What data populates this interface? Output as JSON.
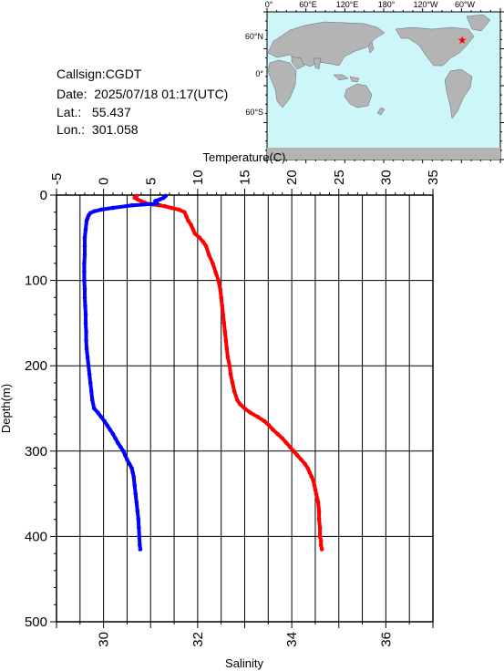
{
  "info": {
    "callsign": "Callsign:CGDT",
    "date_label": "Date:",
    "date_value": "2025/07/18 01:17(UTC)",
    "lat_label": "Lat.:",
    "lat_value": "55.437",
    "lon_label": "Lon.:",
    "lon_value": "301.058"
  },
  "map": {
    "top_labels": [
      "0°",
      "60°E",
      "120°E",
      "180°",
      "120°W",
      "60°W"
    ],
    "left_labels": [
      "60°N",
      "0°",
      "60°S"
    ],
    "ocean_color": "#cdf6fb",
    "land_color": "#b4b4b4",
    "marker_color": "#ff0000",
    "station": {
      "lat": 55.437,
      "lon": 301.058
    }
  },
  "chart_data": {
    "type": "scatter",
    "xlabel_top": "Temperature(C)",
    "xlabel_bottom": "Salinity",
    "ylabel": "Depth(m)",
    "temperature_range": [
      -5,
      35
    ],
    "temperature_ticks": [
      -5,
      0,
      5,
      10,
      15,
      20,
      25,
      30,
      35
    ],
    "salinity_range": [
      29,
      37
    ],
    "salinity_ticks": [
      30,
      32,
      34,
      36
    ],
    "depth_range": [
      0,
      500
    ],
    "depth_ticks": [
      0,
      100,
      200,
      300,
      400,
      500
    ],
    "grid": true,
    "series": [
      {
        "color": "#ff0000",
        "axis": "temperature",
        "points": [
          [
            3.5,
            1
          ],
          [
            3.3,
            3
          ],
          [
            3.6,
            5
          ],
          [
            4.0,
            7
          ],
          [
            4.4,
            9
          ],
          [
            4.6,
            10
          ],
          [
            5.2,
            11
          ],
          [
            6.0,
            12
          ],
          [
            6.5,
            13
          ],
          [
            7.2,
            15
          ],
          [
            8.0,
            17
          ],
          [
            8.6,
            20
          ],
          [
            8.8,
            25
          ],
          [
            9.0,
            30
          ],
          [
            9.3,
            35
          ],
          [
            9.5,
            40
          ],
          [
            9.7,
            45
          ],
          [
            10.2,
            50
          ],
          [
            10.6,
            55
          ],
          [
            10.9,
            60
          ],
          [
            11.2,
            70
          ],
          [
            11.6,
            80
          ],
          [
            11.9,
            90
          ],
          [
            12.2,
            100
          ],
          [
            12.4,
            110
          ],
          [
            12.5,
            120
          ],
          [
            12.6,
            130
          ],
          [
            12.7,
            140
          ],
          [
            12.8,
            150
          ],
          [
            12.9,
            160
          ],
          [
            13.0,
            170
          ],
          [
            13.1,
            180
          ],
          [
            13.2,
            190
          ],
          [
            13.4,
            200
          ],
          [
            13.5,
            210
          ],
          [
            13.7,
            220
          ],
          [
            13.9,
            230
          ],
          [
            14.2,
            240
          ],
          [
            14.5,
            245
          ],
          [
            15.0,
            250
          ],
          [
            15.6,
            255
          ],
          [
            16.4,
            260
          ],
          [
            17.1,
            265
          ],
          [
            17.6,
            270
          ],
          [
            18.0,
            275
          ],
          [
            18.5,
            280
          ],
          [
            19.0,
            285
          ],
          [
            19.4,
            290
          ],
          [
            19.8,
            295
          ],
          [
            20.2,
            300
          ],
          [
            20.6,
            305
          ],
          [
            21.0,
            310
          ],
          [
            21.4,
            315
          ],
          [
            21.7,
            320
          ],
          [
            21.9,
            325
          ],
          [
            22.1,
            330
          ],
          [
            22.3,
            335
          ],
          [
            22.4,
            340
          ],
          [
            22.5,
            345
          ],
          [
            22.6,
            350
          ],
          [
            22.7,
            355
          ],
          [
            22.8,
            360
          ],
          [
            22.9,
            370
          ],
          [
            22.9,
            380
          ],
          [
            23.0,
            390
          ],
          [
            23.0,
            400
          ],
          [
            23.1,
            405
          ],
          [
            23.1,
            410
          ],
          [
            23.2,
            415
          ]
        ]
      },
      {
        "color": "#0000ff",
        "axis": "salinity",
        "points": [
          [
            31.32,
            1
          ],
          [
            31.28,
            3
          ],
          [
            31.2,
            5
          ],
          [
            31.1,
            7
          ],
          [
            31.14,
            10
          ],
          [
            30.6,
            12
          ],
          [
            30.2,
            15
          ],
          [
            29.95,
            17
          ],
          [
            29.8,
            19
          ],
          [
            29.72,
            21
          ],
          [
            29.68,
            24
          ],
          [
            29.66,
            27
          ],
          [
            29.64,
            30
          ],
          [
            29.62,
            40
          ],
          [
            29.6,
            50
          ],
          [
            29.6,
            60
          ],
          [
            29.6,
            70
          ],
          [
            29.59,
            80
          ],
          [
            29.59,
            90
          ],
          [
            29.59,
            100
          ],
          [
            29.6,
            110
          ],
          [
            29.6,
            120
          ],
          [
            29.61,
            130
          ],
          [
            29.62,
            140
          ],
          [
            29.62,
            150
          ],
          [
            29.63,
            160
          ],
          [
            29.63,
            170
          ],
          [
            29.64,
            180
          ],
          [
            29.66,
            190
          ],
          [
            29.68,
            200
          ],
          [
            29.7,
            210
          ],
          [
            29.72,
            220
          ],
          [
            29.74,
            230
          ],
          [
            29.76,
            240
          ],
          [
            29.8,
            250
          ],
          [
            29.88,
            255
          ],
          [
            29.95,
            260
          ],
          [
            30.02,
            265
          ],
          [
            30.08,
            270
          ],
          [
            30.14,
            275
          ],
          [
            30.2,
            280
          ],
          [
            30.25,
            285
          ],
          [
            30.3,
            290
          ],
          [
            30.36,
            295
          ],
          [
            30.42,
            300
          ],
          [
            30.46,
            305
          ],
          [
            30.5,
            310
          ],
          [
            30.55,
            315
          ],
          [
            30.6,
            320
          ],
          [
            30.62,
            325
          ],
          [
            30.64,
            330
          ],
          [
            30.66,
            340
          ],
          [
            30.68,
            350
          ],
          [
            30.7,
            360
          ],
          [
            30.72,
            370
          ],
          [
            30.74,
            380
          ],
          [
            30.75,
            390
          ],
          [
            30.76,
            400
          ],
          [
            30.77,
            410
          ],
          [
            30.78,
            415
          ]
        ]
      }
    ]
  }
}
